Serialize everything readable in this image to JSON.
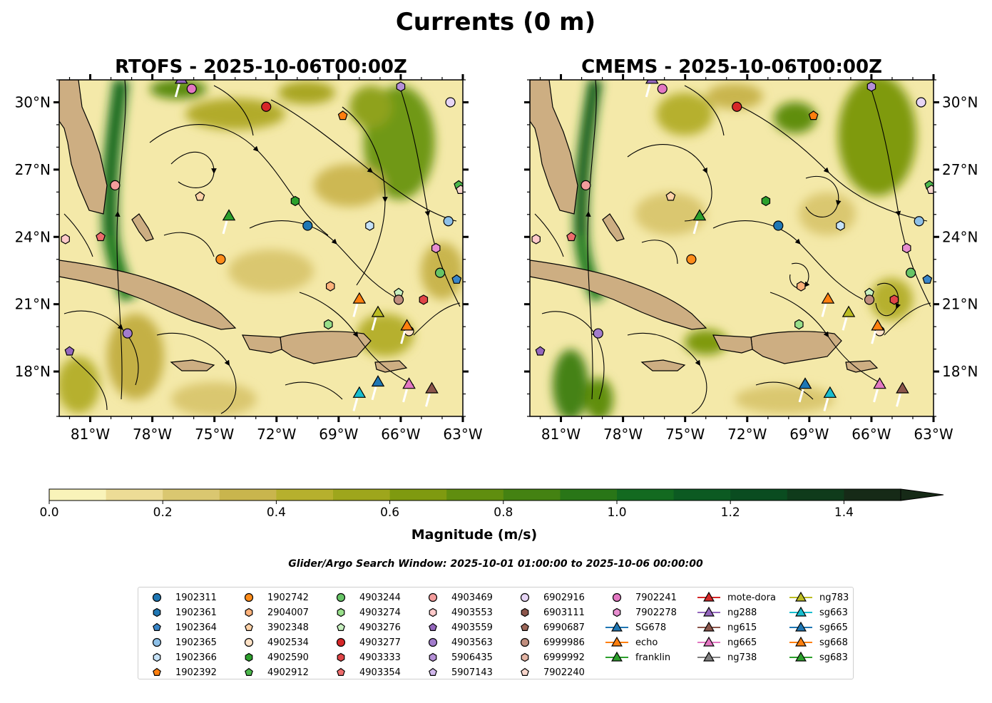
{
  "figure_title": "Currents (0 m)",
  "search_window": "Glider/Argo Search Window: 2025-10-01 01:00:00 to 2025-10-06 00:00:00",
  "chart_data": [
    {
      "type": "heatmap",
      "title": "RTOFS - 2025-10-06T00:00Z",
      "variable": "Surface current magnitude with streamlines",
      "x_ticks": [
        "81°W",
        "78°W",
        "75°W",
        "72°W",
        "69°W",
        "66°W",
        "63°W"
      ],
      "y_ticks": [
        "30°N",
        "27°N",
        "24°N",
        "21°N",
        "18°N"
      ],
      "x_values": [
        -81,
        -78,
        -75,
        -72,
        -69,
        -66,
        -63
      ],
      "y_values": [
        30,
        27,
        24,
        21,
        18
      ],
      "xlim": [
        -82.5,
        -63
      ],
      "ylim": [
        16,
        31
      ],
      "ytick_side": "left"
    },
    {
      "type": "heatmap",
      "title": "CMEMS - 2025-10-06T00:00Z",
      "variable": "Surface current magnitude with streamlines",
      "x_ticks": [
        "81°W",
        "78°W",
        "75°W",
        "72°W",
        "69°W",
        "66°W",
        "63°W"
      ],
      "y_ticks": [
        "30°N",
        "27°N",
        "24°N",
        "21°N",
        "18°N"
      ],
      "x_values": [
        -81,
        -78,
        -75,
        -72,
        -69,
        -66,
        -63
      ],
      "y_values": [
        30,
        27,
        24,
        21,
        18
      ],
      "xlim": [
        -82.5,
        -63
      ],
      "ylim": [
        16,
        31
      ],
      "ytick_side": "right"
    }
  ],
  "colorbar": {
    "label": "Magnitude (m/s)",
    "tick_labels": [
      "0.0",
      "0.2",
      "0.4",
      "0.6",
      "0.8",
      "1.0",
      "1.2",
      "1.4"
    ],
    "tick_values": [
      0,
      0.2,
      0.4,
      0.6,
      0.8,
      1.0,
      1.2,
      1.4
    ],
    "range": [
      0,
      1.5
    ],
    "extend": "max",
    "colors": [
      "#f9f3b9",
      "#eddc96",
      "#dac770",
      "#c9b54d",
      "#b6b02d",
      "#9ea61c",
      "#7f9a10",
      "#608e0f",
      "#448212",
      "#297617",
      "#136a20",
      "#0c5a22",
      "#0a4c20",
      "#0f3b1b",
      "#162a17"
    ]
  },
  "floats": [
    {
      "id": "1902311",
      "color": "#1f77b4",
      "shape": "circle",
      "pos": [
        [
          -70.5,
          24.5
        ],
        [
          -70.5,
          24.5
        ]
      ]
    },
    {
      "id": "1902361",
      "color": "#1f77b4",
      "shape": "hexagon",
      "pos": [
        null,
        null
      ]
    },
    {
      "id": "1902364",
      "color": "#3a86c8",
      "shape": "pentagon",
      "pos": [
        [
          -63.3,
          22.1
        ],
        [
          -63.3,
          22.1
        ]
      ]
    },
    {
      "id": "1902365",
      "color": "#8ec0e8",
      "shape": "circle",
      "pos": [
        [
          -63.7,
          24.7
        ],
        [
          -63.7,
          24.7
        ]
      ]
    },
    {
      "id": "1902366",
      "color": "#c6e2f7",
      "shape": "hexagon",
      "pos": [
        [
          -67.5,
          24.5
        ],
        [
          -67.5,
          24.5
        ]
      ]
    },
    {
      "id": "1902392",
      "color": "#ff7f0e",
      "shape": "pentagon",
      "pos": [
        [
          -68.8,
          29.4
        ],
        [
          -68.8,
          29.4
        ]
      ]
    },
    {
      "id": "1902742",
      "color": "#ff8c1a",
      "shape": "circle",
      "pos": [
        [
          -74.7,
          23.0
        ],
        [
          -74.7,
          23.0
        ]
      ]
    },
    {
      "id": "2904007",
      "color": "#ffb27a",
      "shape": "hexagon",
      "pos": [
        [
          -69.4,
          21.8
        ],
        [
          -69.4,
          21.8
        ]
      ]
    },
    {
      "id": "3902348",
      "color": "#ffd2a8",
      "shape": "pentagon",
      "pos": [
        [
          -75.7,
          25.8
        ],
        [
          -75.7,
          25.8
        ]
      ]
    },
    {
      "id": "4902534",
      "color": "#ffe2c6",
      "shape": "circle",
      "pos": [
        [
          -65.6,
          19.8
        ],
        [
          -65.6,
          19.8
        ]
      ]
    },
    {
      "id": "4902590",
      "color": "#2ca02c",
      "shape": "hexagon",
      "pos": [
        [
          -71.1,
          25.6
        ],
        [
          -71.1,
          25.6
        ]
      ]
    },
    {
      "id": "4902912",
      "color": "#4cb84c",
      "shape": "pentagon",
      "pos": [
        [
          -63.2,
          26.3
        ],
        [
          -63.2,
          26.3
        ]
      ]
    },
    {
      "id": "4903244",
      "color": "#66c466",
      "shape": "circle",
      "pos": [
        [
          -64.1,
          22.4
        ],
        [
          -64.1,
          22.4
        ]
      ]
    },
    {
      "id": "4903274",
      "color": "#98df8a",
      "shape": "hexagon",
      "pos": [
        [
          -69.5,
          20.1
        ],
        [
          -69.5,
          20.1
        ]
      ]
    },
    {
      "id": "4903276",
      "color": "#c7f0c0",
      "shape": "pentagon",
      "pos": [
        [
          -66.1,
          21.5
        ],
        [
          -66.1,
          21.5
        ]
      ]
    },
    {
      "id": "4903277",
      "color": "#d62728",
      "shape": "circle",
      "pos": [
        [
          -72.5,
          29.8
        ],
        [
          -72.5,
          29.8
        ]
      ]
    },
    {
      "id": "4903333",
      "color": "#e04547",
      "shape": "hexagon",
      "pos": [
        [
          -64.9,
          21.2
        ],
        [
          -64.9,
          21.2
        ]
      ]
    },
    {
      "id": "4903354",
      "color": "#ee6c6c",
      "shape": "pentagon",
      "pos": [
        [
          -80.5,
          24.0
        ],
        [
          -80.5,
          24.0
        ]
      ]
    },
    {
      "id": "4903469",
      "color": "#f39c9c",
      "shape": "circle",
      "pos": [
        [
          -79.8,
          26.3
        ],
        [
          -79.8,
          26.3
        ]
      ]
    },
    {
      "id": "4903553",
      "color": "#ffc9c9",
      "shape": "hexagon",
      "pos": [
        [
          -82.2,
          23.9
        ],
        [
          -82.2,
          23.9
        ]
      ]
    },
    {
      "id": "4903559",
      "color": "#9467bd",
      "shape": "pentagon",
      "pos": [
        [
          -82.0,
          18.9
        ],
        [
          -82.0,
          18.9
        ]
      ]
    },
    {
      "id": "4903563",
      "color": "#a27ccc",
      "shape": "circle",
      "pos": [
        [
          -79.2,
          19.7
        ],
        [
          -79.2,
          19.7
        ]
      ]
    },
    {
      "id": "5906435",
      "color": "#b48fd6",
      "shape": "hexagon",
      "pos": [
        [
          -66.0,
          30.7
        ],
        [
          -66.0,
          30.7
        ]
      ]
    },
    {
      "id": "5907143",
      "color": "#d1b8ec",
      "shape": "pentagon",
      "pos": [
        null,
        null
      ]
    },
    {
      "id": "6902916",
      "color": "#e6d5f5",
      "shape": "circle",
      "pos": [
        [
          -63.6,
          30.0
        ],
        [
          -63.6,
          30.0
        ]
      ]
    },
    {
      "id": "6903111",
      "color": "#8c564b",
      "shape": "hexagon",
      "pos": [
        null,
        null
      ]
    },
    {
      "id": "6990687",
      "color": "#9c6759",
      "shape": "pentagon",
      "pos": [
        null,
        null
      ]
    },
    {
      "id": "6999986",
      "color": "#c08e7e",
      "shape": "circle",
      "pos": [
        [
          -66.1,
          21.2
        ],
        [
          -66.1,
          21.2
        ]
      ]
    },
    {
      "id": "6999992",
      "color": "#e3b4a4",
      "shape": "hexagon",
      "pos": [
        null,
        null
      ]
    },
    {
      "id": "7902240",
      "color": "#f8d6cc",
      "shape": "pentagon",
      "pos": [
        [
          -63.1,
          26.1
        ],
        [
          -63.1,
          26.1
        ]
      ]
    },
    {
      "id": "7902241",
      "color": "#e377c2",
      "shape": "circle",
      "pos": [
        [
          -76.1,
          30.6
        ],
        [
          -76.1,
          30.6
        ]
      ]
    },
    {
      "id": "7902278",
      "color": "#e88ed0",
      "shape": "hexagon",
      "pos": [
        [
          -64.3,
          23.5
        ],
        [
          -64.3,
          23.5
        ]
      ]
    }
  ],
  "gliders": [
    {
      "id": "SG678",
      "color": "#1f77b4",
      "pos": [
        null,
        null
      ]
    },
    {
      "id": "echo",
      "color": "#ff7f0e",
      "pos": [
        [
          -65.7,
          20.0
        ],
        [
          -65.7,
          20.0
        ]
      ]
    },
    {
      "id": "franklin",
      "color": "#2ca02c",
      "pos": [
        [
          -74.3,
          24.9
        ],
        [
          -74.3,
          24.9
        ]
      ]
    },
    {
      "id": "mote-dora",
      "color": "#d62728",
      "pos": [
        null,
        null
      ]
    },
    {
      "id": "ng288",
      "color": "#9467bd",
      "pos": [
        [
          -76.6,
          31.0
        ],
        [
          -76.6,
          31.0
        ]
      ]
    },
    {
      "id": "ng615",
      "color": "#8c564b",
      "pos": [
        [
          -64.5,
          17.2
        ],
        [
          -64.5,
          17.2
        ]
      ]
    },
    {
      "id": "ng665",
      "color": "#e377c2",
      "pos": [
        [
          -65.6,
          17.4
        ],
        [
          -65.6,
          17.4
        ]
      ]
    },
    {
      "id": "ng738",
      "color": "#7f7f7f",
      "pos": [
        null,
        null
      ]
    },
    {
      "id": "ng783",
      "color": "#bcbd22",
      "pos": [
        [
          -67.1,
          20.6
        ],
        [
          -67.1,
          20.6
        ]
      ]
    },
    {
      "id": "sg663",
      "color": "#17becf",
      "pos": [
        [
          -68.0,
          17.0
        ],
        [
          -68.0,
          17.0
        ]
      ]
    },
    {
      "id": "sg665",
      "color": "#1f77b4",
      "pos": [
        [
          -67.1,
          17.5
        ],
        [
          -69.2,
          17.4
        ]
      ]
    },
    {
      "id": "sg668",
      "color": "#ff7f0e",
      "pos": [
        [
          -68.0,
          21.2
        ],
        [
          -68.1,
          21.2
        ]
      ]
    },
    {
      "id": "sg683",
      "color": "#2ca02c",
      "pos": [
        null,
        null
      ]
    }
  ]
}
